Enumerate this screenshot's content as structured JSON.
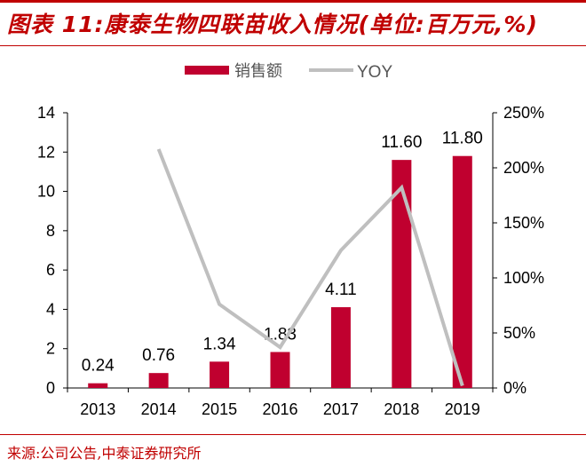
{
  "title": "图表 11:康泰生物四联苗收入情况(单位:百万元,%)",
  "source": "来源:公司公告,中泰证券研究所",
  "chart_data": {
    "type": "bar+line",
    "categories": [
      "2013",
      "2014",
      "2015",
      "2016",
      "2017",
      "2018",
      "2019"
    ],
    "series": [
      {
        "name": "销售额",
        "type": "bar",
        "axis": "left",
        "color": "#C0002F",
        "values": [
          0.24,
          0.76,
          1.34,
          1.83,
          4.11,
          11.6,
          11.8
        ],
        "labels": [
          "0.24",
          "0.76",
          "1.34",
          "1.83",
          "4.11",
          "11.60",
          "11.80"
        ]
      },
      {
        "name": "YOY",
        "type": "line",
        "axis": "right",
        "color": "#BFBFBF",
        "values": [
          null,
          217,
          76,
          37,
          125,
          182,
          2
        ]
      }
    ],
    "left_axis": {
      "ylim": [
        0,
        14
      ],
      "ticks": [
        "0",
        "2",
        "4",
        "6",
        "8",
        "10",
        "12",
        "14"
      ]
    },
    "right_axis": {
      "ylim": [
        0,
        250
      ],
      "ticks": [
        "0%",
        "50%",
        "100%",
        "150%",
        "200%",
        "250%"
      ]
    },
    "legend": "top-center",
    "grid": false
  }
}
